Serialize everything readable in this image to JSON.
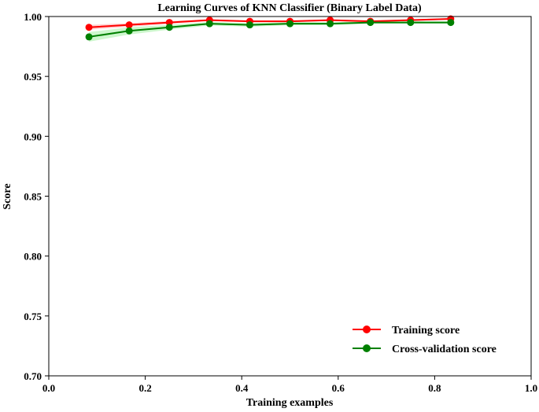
{
  "chart_data": {
    "type": "line",
    "title": "Learning Curves of KNN Classifier (Binary Label Data)",
    "xlabel": "Training examples",
    "ylabel": "Score",
    "xlim": [
      0.0,
      1.0
    ],
    "ylim": [
      0.7,
      1.0
    ],
    "xticks": [
      "0.0",
      "0.2",
      "0.4",
      "0.6",
      "0.8",
      "1.0"
    ],
    "yticks": [
      "0.70",
      "0.75",
      "0.80",
      "0.85",
      "0.90",
      "0.95",
      "1.00"
    ],
    "grid": false,
    "legend_position": "lower-right",
    "x": [
      0.0833,
      0.1667,
      0.25,
      0.3333,
      0.4167,
      0.5,
      0.5833,
      0.6667,
      0.75,
      0.8333
    ],
    "series": [
      {
        "name": "Training score",
        "color": "#ff0000",
        "band_color": "#ff9999",
        "values": [
          0.991,
          0.993,
          0.995,
          0.997,
          0.996,
          0.996,
          0.997,
          0.996,
          0.997,
          0.998
        ],
        "band": [
          0.002,
          0.0015,
          0.0012,
          0.0008,
          0.0008,
          0.0008,
          0.0007,
          0.0007,
          0.0007,
          0.0006
        ]
      },
      {
        "name": "Cross-validation score",
        "color": "#008000",
        "band_color": "#90ee90",
        "values": [
          0.983,
          0.988,
          0.991,
          0.994,
          0.993,
          0.994,
          0.994,
          0.995,
          0.995,
          0.995
        ],
        "band": [
          0.004,
          0.003,
          0.002,
          0.0015,
          0.0015,
          0.0012,
          0.0012,
          0.001,
          0.001,
          0.001
        ]
      }
    ]
  }
}
